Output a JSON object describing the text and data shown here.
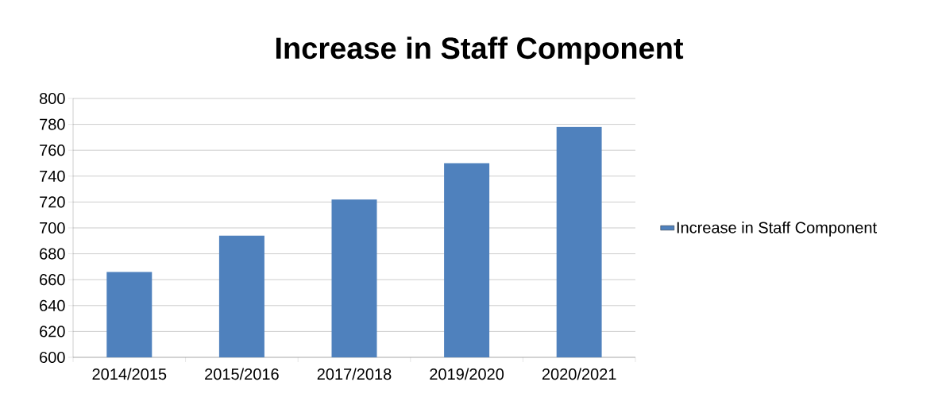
{
  "chart_data": {
    "type": "bar",
    "title": "Increase in Staff Component",
    "categories": [
      "2014/2015",
      "2015/2016",
      "2017/2018",
      "2019/2020",
      "2020/2021"
    ],
    "series": [
      {
        "name": "Increase in Staff Component",
        "color": "#4f81bd",
        "values": [
          666,
          694,
          722,
          750,
          778
        ]
      }
    ],
    "ylim": [
      600,
      800
    ],
    "yticks": [
      600,
      620,
      640,
      660,
      680,
      700,
      720,
      740,
      760,
      780,
      800
    ],
    "grid": "y",
    "legend": "right"
  }
}
